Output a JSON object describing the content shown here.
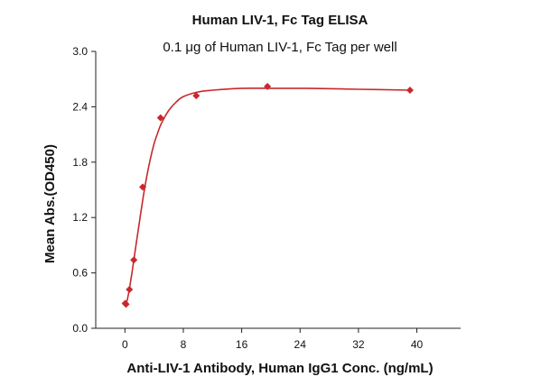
{
  "chart_data": {
    "type": "scatter",
    "title": "Human LIV-1, Fc Tag ELISA",
    "subtitle": "0.1 μg of Human LIV-1, Fc Tag per well",
    "xlabel": "Anti-LIV-1 Antibody, Human IgG1 Conc. (ng/mL)",
    "ylabel": "Mean Abs.(OD450)",
    "xlim": [
      -4,
      46
    ],
    "ylim": [
      0,
      3.0
    ],
    "x_ticks": [
      0,
      8,
      16,
      24,
      32,
      40
    ],
    "x_tick_labels": [
      "0",
      "8",
      "16",
      "24",
      "32",
      "40"
    ],
    "y_ticks": [
      0,
      0.6,
      1.2,
      1.8,
      2.4,
      3.0
    ],
    "y_tick_labels": [
      "0.0",
      "0.6",
      "1.2",
      "1.8",
      "2.4",
      "3.0"
    ],
    "grid": false,
    "legend": "none",
    "marker": "diamond",
    "color": "#c8282d",
    "series": [
      {
        "points": [
          {
            "x": 0.04,
            "y": 0.27
          },
          {
            "x": 0.15,
            "y": 0.26
          },
          {
            "x": 0.61,
            "y": 0.42
          },
          {
            "x": 1.22,
            "y": 0.74
          },
          {
            "x": 2.44,
            "y": 1.53
          },
          {
            "x": 4.88,
            "y": 2.28
          },
          {
            "x": 9.77,
            "y": 2.52
          },
          {
            "x": 19.53,
            "y": 2.62
          },
          {
            "x": 39.06,
            "y": 2.58
          }
        ]
      }
    ],
    "fit_curve": [
      {
        "x": 0.04,
        "y": 0.25
      },
      {
        "x": 0.3,
        "y": 0.3
      },
      {
        "x": 0.6,
        "y": 0.42
      },
      {
        "x": 1.0,
        "y": 0.62
      },
      {
        "x": 1.5,
        "y": 0.89
      },
      {
        "x": 2.0,
        "y": 1.16
      },
      {
        "x": 2.5,
        "y": 1.42
      },
      {
        "x": 3.0,
        "y": 1.65
      },
      {
        "x": 3.5,
        "y": 1.84
      },
      {
        "x": 4.0,
        "y": 2.0
      },
      {
        "x": 4.5,
        "y": 2.12
      },
      {
        "x": 5.0,
        "y": 2.22
      },
      {
        "x": 6.0,
        "y": 2.36
      },
      {
        "x": 7.0,
        "y": 2.45
      },
      {
        "x": 8.0,
        "y": 2.51
      },
      {
        "x": 10.0,
        "y": 2.56
      },
      {
        "x": 12.0,
        "y": 2.58
      },
      {
        "x": 16.0,
        "y": 2.6
      },
      {
        "x": 20.0,
        "y": 2.6
      },
      {
        "x": 25.0,
        "y": 2.6
      },
      {
        "x": 32.0,
        "y": 2.59
      },
      {
        "x": 39.06,
        "y": 2.58
      }
    ]
  }
}
